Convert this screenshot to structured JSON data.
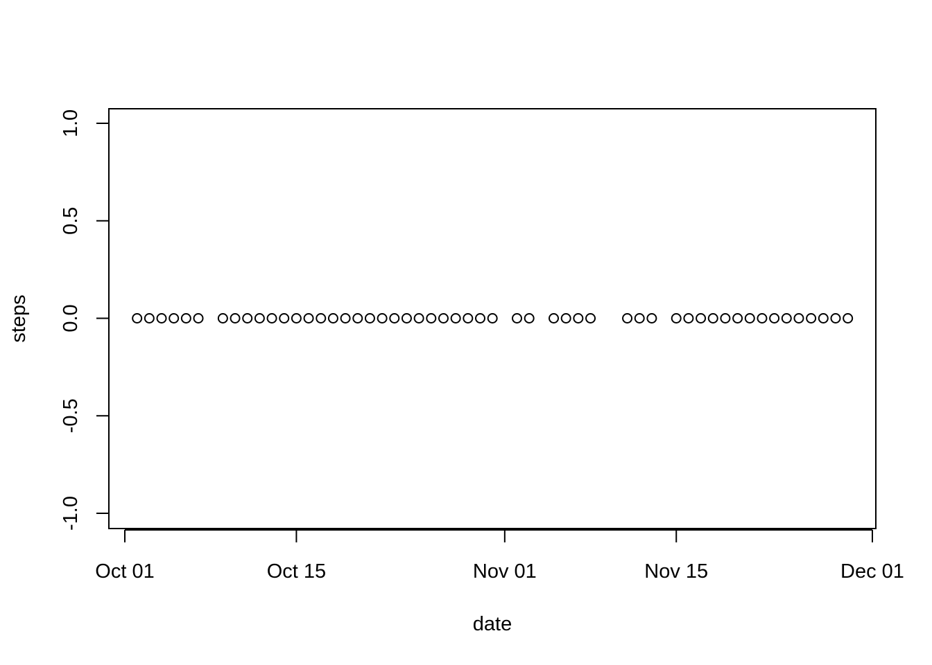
{
  "chart_data": {
    "type": "scatter",
    "title": "",
    "xlabel": "date",
    "ylabel": "steps",
    "xlim": [
      "2012-10-01",
      "2012-11-30"
    ],
    "ylim": [
      -1.0,
      1.0
    ],
    "x_ticks": [
      {
        "date": "2012-10-01",
        "label": "Oct 01"
      },
      {
        "date": "2012-10-15",
        "label": "Oct 15"
      },
      {
        "date": "2012-11-01",
        "label": "Nov 01"
      },
      {
        "date": "2012-11-15",
        "label": "Nov 15"
      },
      {
        "date": "2012-12-01",
        "label": "Dec 01"
      }
    ],
    "y_ticks": [
      {
        "value": -1.0,
        "label": "-1.0"
      },
      {
        "value": -0.5,
        "label": "-0.5"
      },
      {
        "value": 0.0,
        "label": "0.0"
      },
      {
        "value": 0.5,
        "label": "0.5"
      },
      {
        "value": 1.0,
        "label": "1.0"
      }
    ],
    "marker": "open-circle",
    "grid": false,
    "points": [
      {
        "x": "2012-10-02",
        "y": 0
      },
      {
        "x": "2012-10-03",
        "y": 0
      },
      {
        "x": "2012-10-04",
        "y": 0
      },
      {
        "x": "2012-10-05",
        "y": 0
      },
      {
        "x": "2012-10-06",
        "y": 0
      },
      {
        "x": "2012-10-07",
        "y": 0
      },
      {
        "x": "2012-10-09",
        "y": 0
      },
      {
        "x": "2012-10-10",
        "y": 0
      },
      {
        "x": "2012-10-11",
        "y": 0
      },
      {
        "x": "2012-10-12",
        "y": 0
      },
      {
        "x": "2012-10-13",
        "y": 0
      },
      {
        "x": "2012-10-14",
        "y": 0
      },
      {
        "x": "2012-10-15",
        "y": 0
      },
      {
        "x": "2012-10-16",
        "y": 0
      },
      {
        "x": "2012-10-17",
        "y": 0
      },
      {
        "x": "2012-10-18",
        "y": 0
      },
      {
        "x": "2012-10-19",
        "y": 0
      },
      {
        "x": "2012-10-20",
        "y": 0
      },
      {
        "x": "2012-10-21",
        "y": 0
      },
      {
        "x": "2012-10-22",
        "y": 0
      },
      {
        "x": "2012-10-23",
        "y": 0
      },
      {
        "x": "2012-10-24",
        "y": 0
      },
      {
        "x": "2012-10-25",
        "y": 0
      },
      {
        "x": "2012-10-26",
        "y": 0
      },
      {
        "x": "2012-10-27",
        "y": 0
      },
      {
        "x": "2012-10-28",
        "y": 0
      },
      {
        "x": "2012-10-29",
        "y": 0
      },
      {
        "x": "2012-10-30",
        "y": 0
      },
      {
        "x": "2012-10-31",
        "y": 0
      },
      {
        "x": "2012-11-02",
        "y": 0
      },
      {
        "x": "2012-11-03",
        "y": 0
      },
      {
        "x": "2012-11-05",
        "y": 0
      },
      {
        "x": "2012-11-06",
        "y": 0
      },
      {
        "x": "2012-11-07",
        "y": 0
      },
      {
        "x": "2012-11-08",
        "y": 0
      },
      {
        "x": "2012-11-11",
        "y": 0
      },
      {
        "x": "2012-11-12",
        "y": 0
      },
      {
        "x": "2012-11-13",
        "y": 0
      },
      {
        "x": "2012-11-15",
        "y": 0
      },
      {
        "x": "2012-11-16",
        "y": 0
      },
      {
        "x": "2012-11-17",
        "y": 0
      },
      {
        "x": "2012-11-18",
        "y": 0
      },
      {
        "x": "2012-11-19",
        "y": 0
      },
      {
        "x": "2012-11-20",
        "y": 0
      },
      {
        "x": "2012-11-21",
        "y": 0
      },
      {
        "x": "2012-11-22",
        "y": 0
      },
      {
        "x": "2012-11-23",
        "y": 0
      },
      {
        "x": "2012-11-24",
        "y": 0
      },
      {
        "x": "2012-11-25",
        "y": 0
      },
      {
        "x": "2012-11-26",
        "y": 0
      },
      {
        "x": "2012-11-27",
        "y": 0
      },
      {
        "x": "2012-11-28",
        "y": 0
      },
      {
        "x": "2012-11-29",
        "y": 0
      }
    ]
  }
}
